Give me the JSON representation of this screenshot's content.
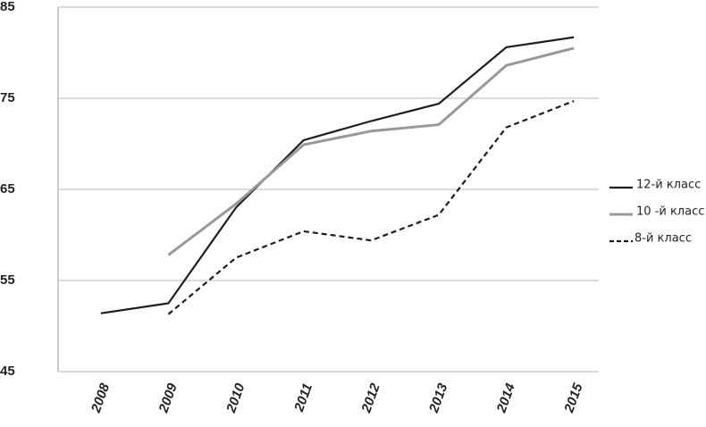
{
  "chart_data": {
    "type": "line",
    "categories": [
      "2008",
      "2009",
      "2010",
      "2011",
      "2012",
      "2013",
      "2014",
      "2015"
    ],
    "series": [
      {
        "name": "12-й класс",
        "color": "#1e1e1e",
        "dash": false,
        "values": [
          51.4,
          52.5,
          63.0,
          70.4,
          72.5,
          74.4,
          80.6,
          81.7
        ]
      },
      {
        "name": "10 -й класс",
        "color": "#999999",
        "dash": false,
        "values": [
          null,
          57.8,
          63.4,
          69.9,
          71.4,
          72.1,
          78.6,
          80.5
        ]
      },
      {
        "name": "8-й класс",
        "color": "#1e1e1e",
        "dash": true,
        "values": [
          null,
          51.3,
          57.5,
          60.4,
          59.4,
          62.2,
          71.8,
          74.7
        ]
      }
    ],
    "ylim": [
      45,
      85
    ],
    "yticks": [
      45,
      55,
      65,
      75,
      85
    ],
    "grid": true,
    "legend": "right"
  }
}
